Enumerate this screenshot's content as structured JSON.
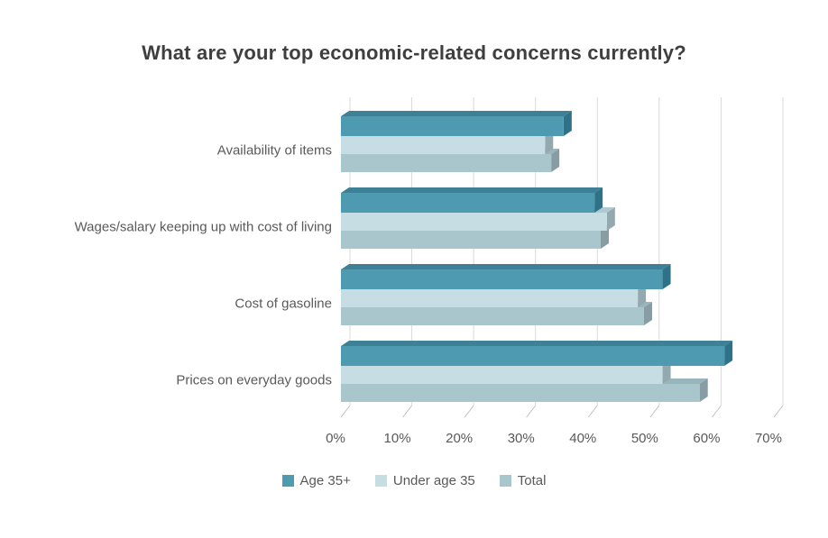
{
  "colors": {
    "background": "#ffffff",
    "title_text": "#3f3f3f",
    "label_text": "#595959",
    "gridline": "#d9d9d9",
    "tick": "#c0c0c0"
  },
  "chart_data": {
    "type": "bar",
    "orientation": "horizontal",
    "style": "3d",
    "title": "What are your top economic-related concerns currently?",
    "categories": [
      "Availability of items",
      "Wages/salary keeping up with cost of living",
      "Cost of gasoline",
      "Prices on everyday goods"
    ],
    "series": [
      {
        "name": "Age 35+",
        "color": "#4e9bb1",
        "top_color": "#3e8095",
        "side_color": "#2f7288",
        "values": [
          36,
          41,
          52,
          62
        ]
      },
      {
        "name": "Under age 35",
        "color": "#c6dee3",
        "top_color": "#afc9d0",
        "side_color": "#94a9af",
        "values": [
          33,
          43,
          48,
          52
        ]
      },
      {
        "name": "Total",
        "color": "#a9c6cd",
        "top_color": "#98b5bc",
        "side_color": "#879da3",
        "values": [
          34,
          42,
          49,
          58
        ]
      }
    ],
    "xlabel": "",
    "ylabel": "",
    "xlim": [
      0,
      70
    ],
    "x_ticks": [
      "0%",
      "10%",
      "20%",
      "30%",
      "40%",
      "50%",
      "60%",
      "70%"
    ],
    "grid": "vertical",
    "legend_position": "bottom"
  }
}
